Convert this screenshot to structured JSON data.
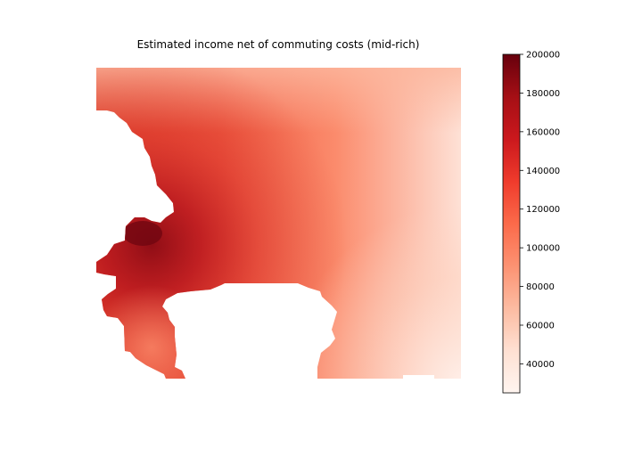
{
  "chart_data": {
    "type": "heatmap",
    "title": "Estimated income net of commuting costs (mid-rich)",
    "xlabel": "",
    "ylabel": "",
    "axes_visible": false,
    "colormap": "Reds",
    "colors": {
      "low": "#fff5f0",
      "mid_low": "#fcbba1",
      "mid": "#fb6a4a",
      "mid_high": "#cb181d",
      "high": "#67000d"
    },
    "colorbar": {
      "min": 25000,
      "max": 200000,
      "ticks": [
        {
          "value": 200000,
          "label": "200000"
        },
        {
          "value": 180000,
          "label": "180000"
        },
        {
          "value": 160000,
          "label": "160000"
        },
        {
          "value": 140000,
          "label": "140000"
        },
        {
          "value": 120000,
          "label": "120000"
        },
        {
          "value": 100000,
          "label": "100000"
        },
        {
          "value": 80000,
          "label": "80000"
        },
        {
          "value": 60000,
          "label": "60000"
        },
        {
          "value": 40000,
          "label": "40000"
        }
      ]
    }
  }
}
